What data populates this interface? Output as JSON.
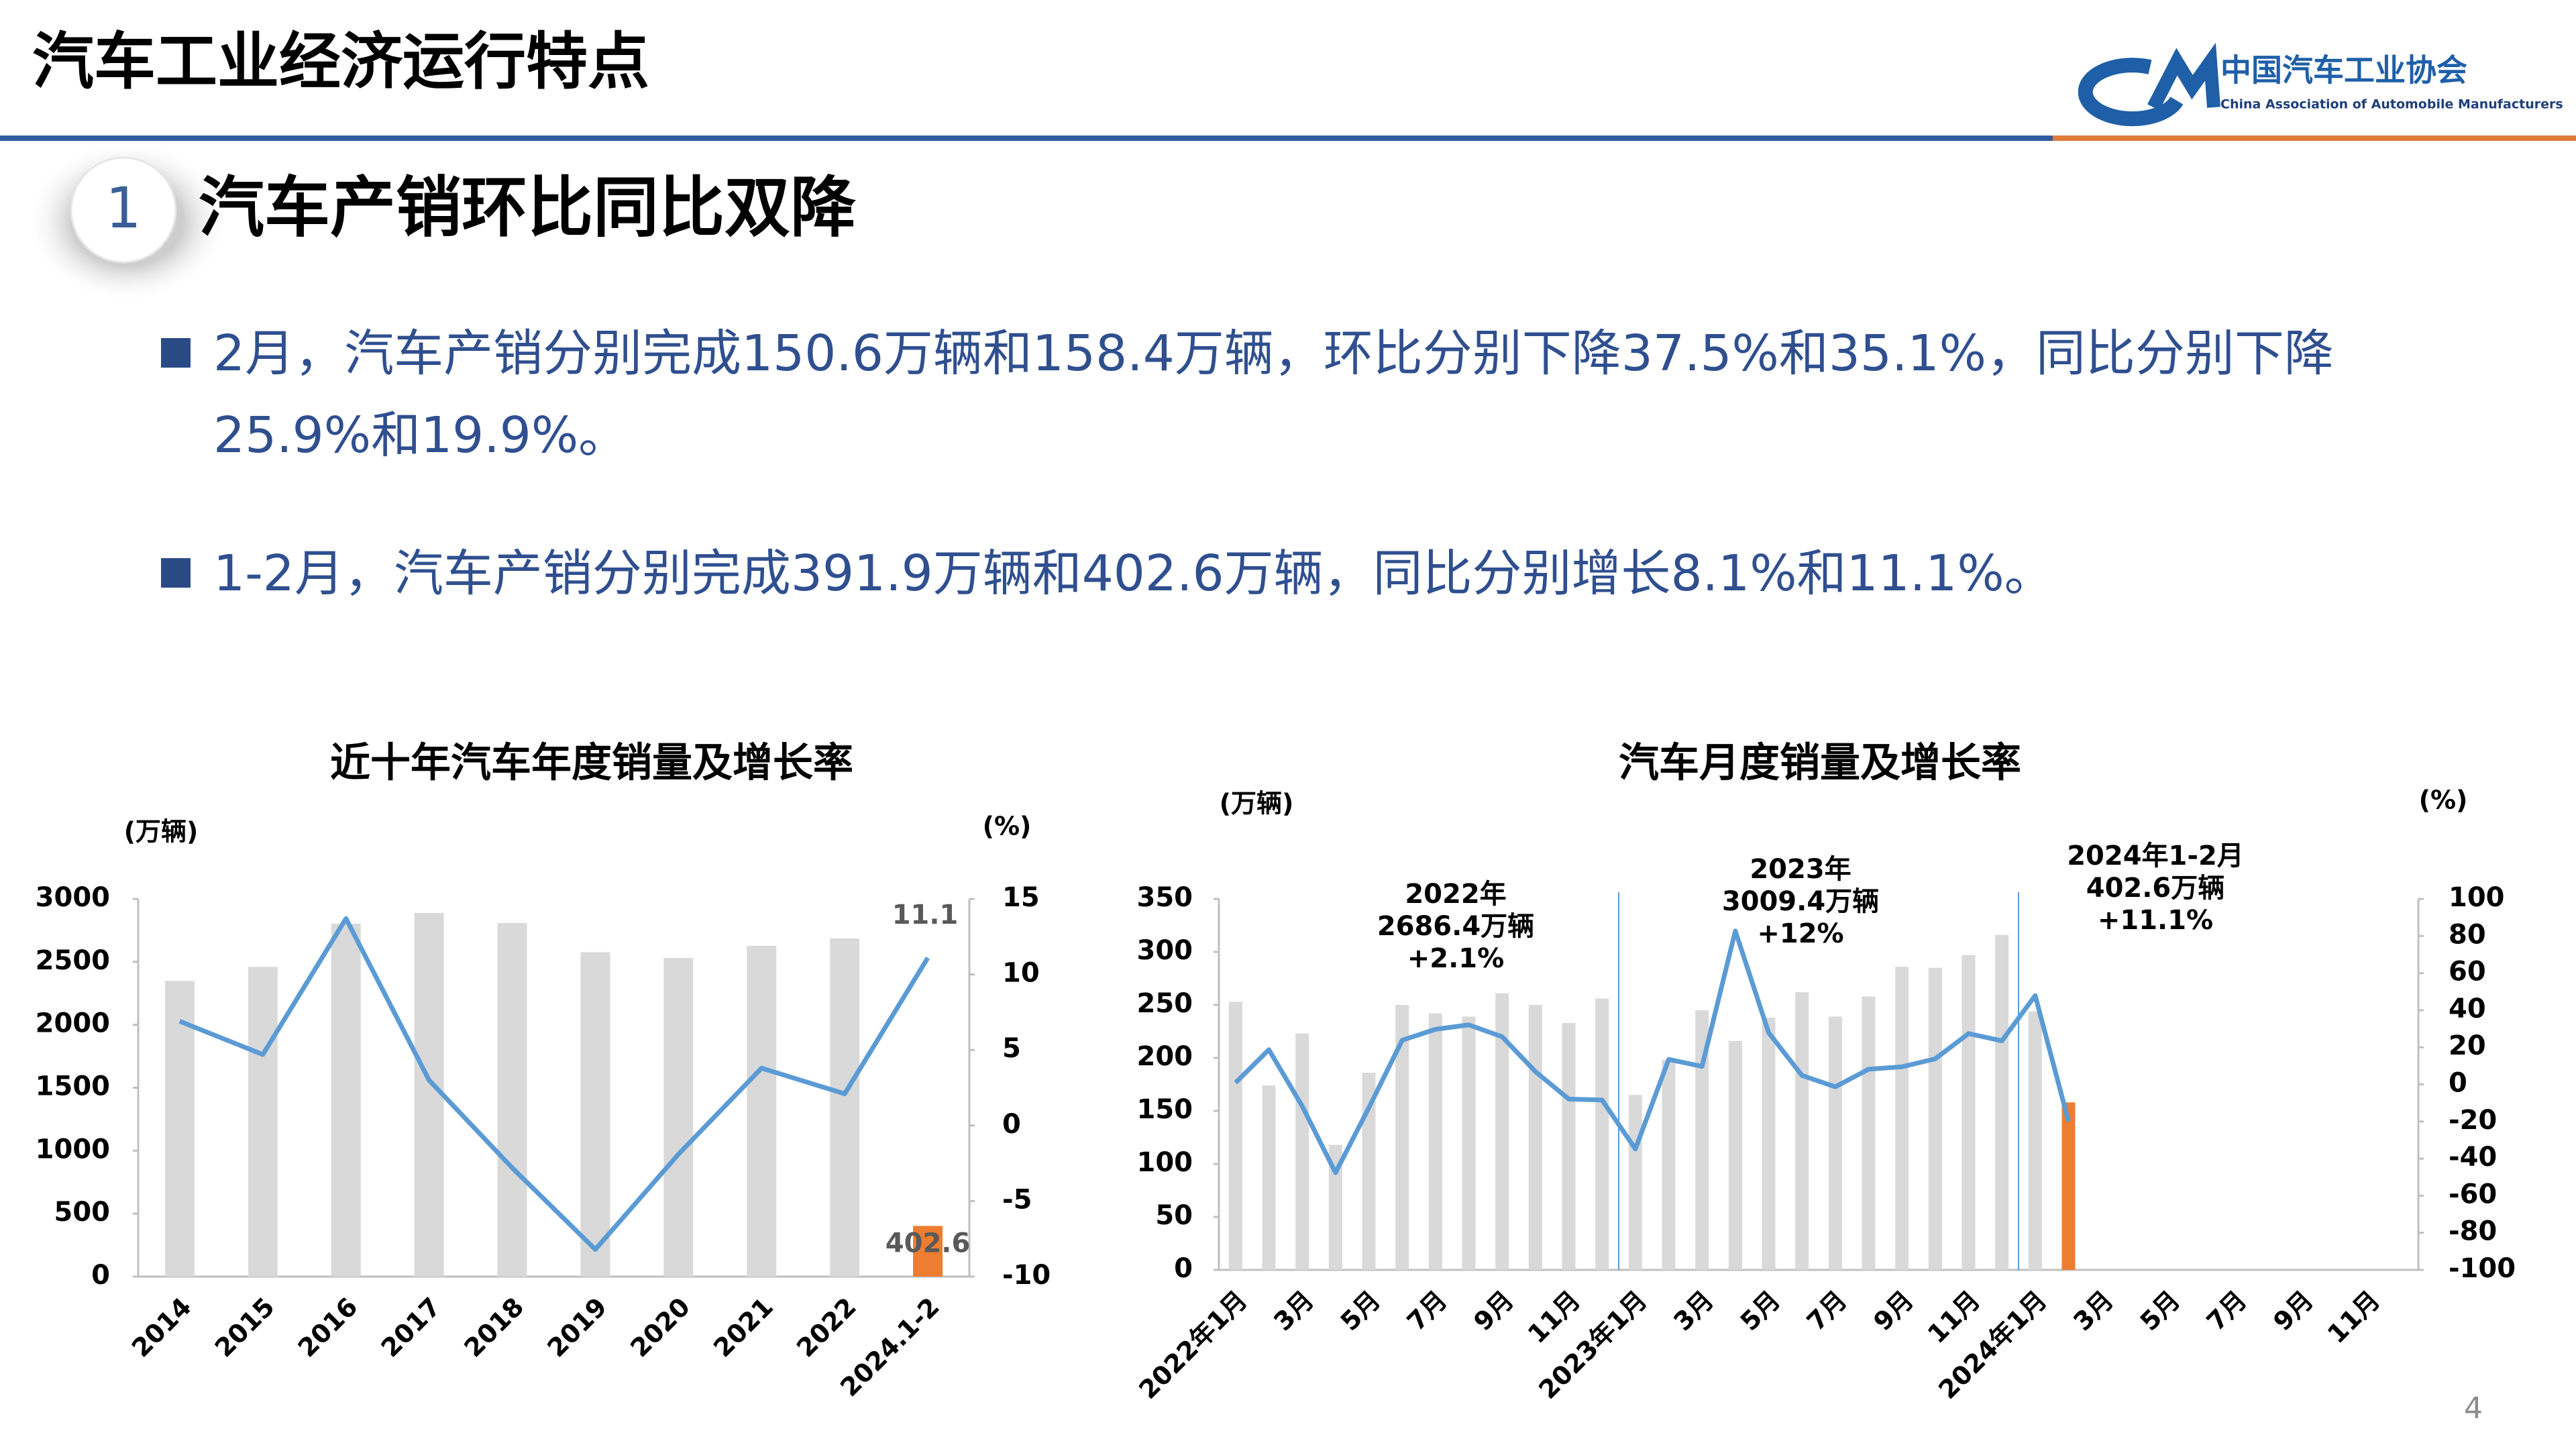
{
  "header": {
    "title": "汽车工业经济运行特点",
    "org_cn": "中国汽车工业协会",
    "org_en": "China Association of Automobile Manufacturers"
  },
  "section": {
    "number": "1",
    "title": "汽车产销环比同比双降"
  },
  "bullets": [
    "2月，汽车产销分别完成150.6万辆和158.4万辆，环比分别下降37.5%和35.1%，同比分别下降25.9%和19.9%。",
    "1-2月，汽车产销分别完成391.9万辆和402.6万辆，同比分别增长8.1%和11.1%。"
  ],
  "page_number": "4",
  "chart_data": [
    {
      "type": "bar",
      "title": "近十年汽车年度销量及增长率",
      "y_unit": "(万辆)",
      "y2_unit": "(%)",
      "categories": [
        "2014",
        "2015",
        "2016",
        "2017",
        "2018",
        "2019",
        "2020",
        "2021",
        "2022",
        "2024.1-2"
      ],
      "ylim": [
        0,
        3000
      ],
      "yticks": [
        0,
        500,
        1000,
        1500,
        2000,
        2500,
        3000
      ],
      "y2lim": [
        -10,
        15
      ],
      "y2ticks": [
        -10,
        -5,
        0,
        5,
        10,
        15
      ],
      "series": [
        {
          "type": "bar",
          "colors": [
            "#d9d9d9",
            "#d9d9d9",
            "#d9d9d9",
            "#d9d9d9",
            "#d9d9d9",
            "#d9d9d9",
            "#d9d9d9",
            "#d9d9d9",
            "#d9d9d9",
            "#ed7d31"
          ],
          "values": [
            2349,
            2460,
            2803,
            2888,
            2808,
            2577,
            2531,
            2627,
            2686,
            402.6
          ],
          "show_labels": [
            false,
            false,
            false,
            false,
            false,
            false,
            false,
            false,
            false,
            true
          ]
        },
        {
          "type": "line",
          "axis": "y2",
          "color": "#5b9bd5",
          "values": [
            6.9,
            4.7,
            13.7,
            3.0,
            -2.8,
            -8.2,
            -1.9,
            3.8,
            2.1,
            11.1
          ],
          "show_labels": [
            false,
            false,
            false,
            false,
            false,
            false,
            false,
            false,
            false,
            true
          ]
        }
      ]
    },
    {
      "type": "bar",
      "title": "汽车月度销量及增长率",
      "y_unit": "(万辆)",
      "y2_unit": "(%)",
      "categories": [
        "2022年1月",
        null,
        "3月",
        null,
        "5月",
        null,
        "7月",
        null,
        "9月",
        null,
        "11月",
        null,
        "2023年1月",
        null,
        "3月",
        null,
        "5月",
        null,
        "7月",
        null,
        "9月",
        null,
        "11月",
        null,
        "2024年1月",
        null,
        "3月",
        null,
        "5月",
        null,
        "7月",
        null,
        "9月",
        null,
        "11月",
        null
      ],
      "ylim": [
        0,
        350
      ],
      "yticks": [
        0,
        50,
        100,
        150,
        200,
        250,
        300,
        350
      ],
      "y2lim": [
        -100,
        100
      ],
      "y2ticks": [
        -100,
        -80,
        -60,
        -40,
        -20,
        0,
        20,
        40,
        60,
        80,
        100
      ],
      "dividers": [
        12,
        24
      ],
      "annotations": [
        [
          "2022年",
          "2686.4万辆",
          "+2.1%"
        ],
        [
          "2023年",
          "3009.4万辆",
          "+12%"
        ],
        [
          "2024年1-2月",
          "402.6万辆",
          "+11.1%"
        ]
      ],
      "series": [
        {
          "type": "bar",
          "colors": [
            "#d9d9d9",
            "#d9d9d9",
            "#d9d9d9",
            "#d9d9d9",
            "#d9d9d9",
            "#d9d9d9",
            "#d9d9d9",
            "#d9d9d9",
            "#d9d9d9",
            "#d9d9d9",
            "#d9d9d9",
            "#d9d9d9",
            "#d9d9d9",
            "#d9d9d9",
            "#d9d9d9",
            "#d9d9d9",
            "#d9d9d9",
            "#d9d9d9",
            "#d9d9d9",
            "#d9d9d9",
            "#d9d9d9",
            "#d9d9d9",
            "#d9d9d9",
            "#d9d9d9",
            "#d9d9d9",
            "#ed7d31",
            null,
            null,
            null,
            null,
            null,
            null,
            null,
            null,
            null,
            null
          ],
          "values": [
            253,
            174,
            223,
            118,
            186,
            250,
            242,
            239,
            261,
            250,
            233,
            256,
            165,
            198,
            245,
            216,
            238,
            262,
            239,
            258,
            286,
            285,
            297,
            316,
            244,
            158,
            null,
            null,
            null,
            null,
            null,
            null,
            null,
            null,
            null,
            null
          ]
        },
        {
          "type": "line",
          "axis": "y2",
          "color": "#5b9bd5",
          "values": [
            0.9,
            18.7,
            -11.7,
            -47.6,
            -12.6,
            23.8,
            29.7,
            32.1,
            25.7,
            6.9,
            -7.9,
            -8.4,
            -34.8,
            13.5,
            9.7,
            82.7,
            27.9,
            4.8,
            -1.3,
            8.2,
            9.5,
            13.8,
            27.4,
            23.5,
            47.9,
            -19.9,
            null,
            null,
            null,
            null,
            null,
            null,
            null,
            null,
            null,
            null
          ]
        }
      ]
    }
  ]
}
